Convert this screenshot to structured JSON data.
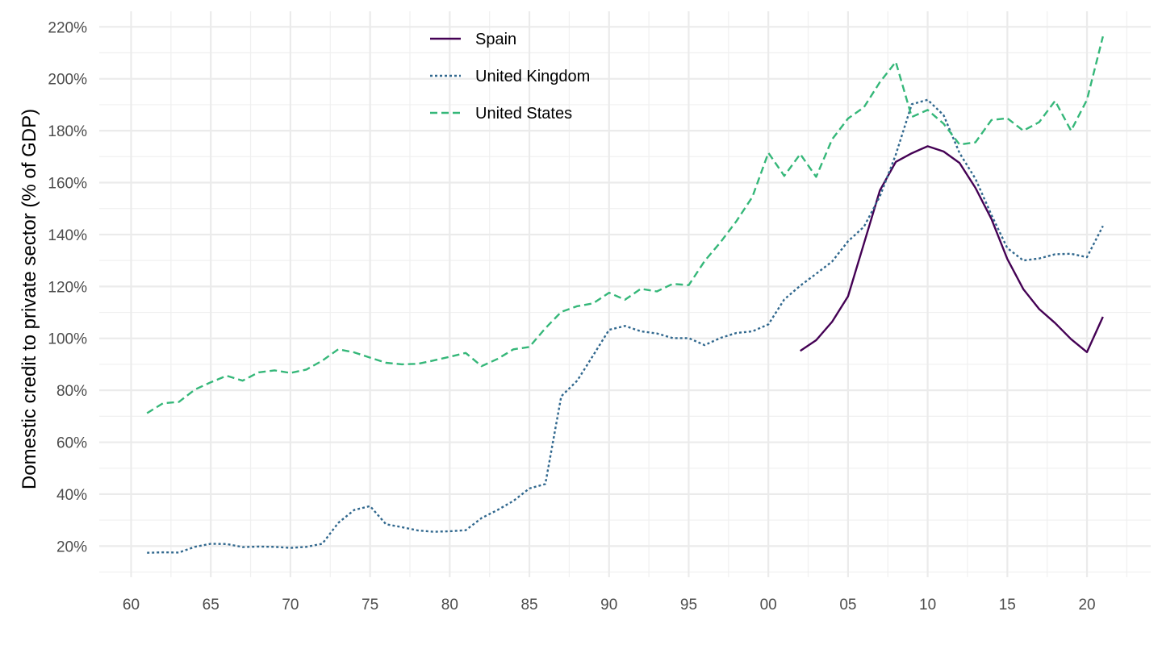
{
  "chart_data": {
    "type": "line",
    "title": "",
    "xlabel": "",
    "ylabel": "Domestic credit to private sector (% of GDP)",
    "x_unit": "year",
    "xlim": [
      1958,
      2024
    ],
    "ylim": [
      8,
      226
    ],
    "y_ticks": [
      20,
      40,
      60,
      80,
      100,
      120,
      140,
      160,
      180,
      200,
      220
    ],
    "y_tick_labels": [
      "20%",
      "40%",
      "60%",
      "80%",
      "100%",
      "120%",
      "140%",
      "160%",
      "180%",
      "200%",
      "220%"
    ],
    "x_ticks": [
      1960,
      1965,
      1970,
      1975,
      1980,
      1985,
      1990,
      1995,
      2000,
      2005,
      2010,
      2015,
      2020
    ],
    "x_tick_labels": [
      "60",
      "65",
      "70",
      "75",
      "80",
      "85",
      "90",
      "95",
      "00",
      "05",
      "10",
      "15",
      "20"
    ],
    "grid": true,
    "legend_position": "top-center",
    "series": [
      {
        "name": "Spain",
        "color": "#440154",
        "line_style": "solid",
        "x": [
          2002,
          2003,
          2004,
          2005,
          2006,
          2007,
          2008,
          2009,
          2010,
          2011,
          2012,
          2013,
          2014,
          2015,
          2016,
          2017,
          2018,
          2019,
          2020,
          2021
        ],
        "values": [
          95.2,
          99.3,
          106.4,
          116.2,
          136.5,
          157.0,
          168.0,
          171.3,
          174.0,
          172.0,
          167.6,
          158.0,
          146.0,
          130.6,
          119.0,
          111.3,
          105.9,
          99.7,
          94.7,
          108.3
        ]
      },
      {
        "name": "United Kingdom",
        "color": "#31688e",
        "line_style": "dotted",
        "x": [
          1961,
          1962,
          1963,
          1964,
          1965,
          1966,
          1967,
          1968,
          1969,
          1970,
          1971,
          1972,
          1973,
          1974,
          1975,
          1976,
          1977,
          1978,
          1979,
          1980,
          1981,
          1982,
          1983,
          1984,
          1985,
          1986,
          1987,
          1988,
          1989,
          1990,
          1991,
          1992,
          1993,
          1994,
          1995,
          1996,
          1997,
          1998,
          1999,
          2000,
          2001,
          2002,
          2003,
          2004,
          2005,
          2006,
          2007,
          2008,
          2009,
          2010,
          2011,
          2012,
          2013,
          2014,
          2015,
          2016,
          2017,
          2018,
          2019,
          2020,
          2021
        ],
        "values": [
          17.4,
          17.6,
          17.5,
          19.7,
          20.9,
          20.8,
          19.6,
          19.8,
          19.7,
          19.3,
          19.7,
          20.9,
          28.9,
          33.9,
          35.4,
          28.4,
          27.3,
          26.0,
          25.5,
          25.7,
          26.1,
          30.8,
          33.9,
          37.4,
          42.2,
          43.9,
          77.7,
          83.7,
          93.4,
          103.3,
          104.8,
          102.7,
          101.9,
          100.1,
          100.1,
          97.4,
          100.2,
          102.1,
          102.7,
          105.4,
          115.0,
          120.3,
          124.9,
          129.6,
          137.4,
          143.0,
          154.7,
          170.8,
          190.2,
          191.9,
          186.0,
          171.4,
          161.5,
          147.6,
          134.8,
          130.0,
          130.8,
          132.4,
          132.6,
          131.3,
          143.3
        ]
      },
      {
        "name": "United States",
        "color": "#35b779",
        "line_style": "dashed",
        "x": [
          1961,
          1962,
          1963,
          1964,
          1965,
          1966,
          1967,
          1968,
          1969,
          1970,
          1971,
          1972,
          1973,
          1974,
          1975,
          1976,
          1977,
          1978,
          1979,
          1980,
          1981,
          1982,
          1983,
          1984,
          1985,
          1986,
          1987,
          1988,
          1989,
          1990,
          1991,
          1992,
          1993,
          1994,
          1995,
          1996,
          1997,
          1998,
          1999,
          2000,
          2001,
          2002,
          2003,
          2004,
          2005,
          2006,
          2007,
          2008,
          2009,
          2010,
          2011,
          2012,
          2013,
          2014,
          2015,
          2016,
          2017,
          2018,
          2019,
          2020,
          2021
        ],
        "values": [
          71.2,
          75.0,
          75.5,
          80.3,
          83.1,
          85.6,
          83.7,
          86.9,
          87.7,
          86.7,
          88.0,
          91.4,
          95.8,
          94.6,
          92.6,
          90.6,
          90.0,
          90.2,
          91.5,
          92.9,
          94.4,
          89.3,
          92.1,
          95.8,
          96.7,
          103.9,
          110.2,
          112.4,
          113.5,
          117.6,
          114.9,
          119.1,
          118.1,
          121.0,
          120.5,
          129.8,
          137.1,
          145.2,
          154.5,
          171.5,
          162.6,
          171.0,
          162.2,
          176.7,
          184.7,
          189.0,
          198.7,
          206.5,
          185.3,
          188.0,
          182.7,
          174.7,
          175.5,
          184.1,
          184.8,
          180.0,
          183.3,
          191.5,
          180.0,
          191.9,
          216.3
        ]
      }
    ]
  }
}
